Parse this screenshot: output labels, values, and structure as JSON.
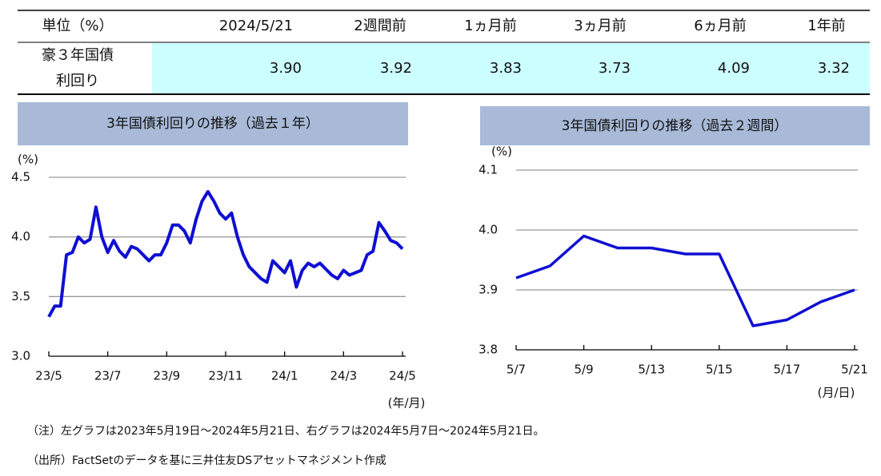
{
  "table": {
    "header": [
      "単位（%）",
      "2024/5/21",
      "2週間前",
      "1ヵ月前",
      "3ヵ月前",
      "6ヵ月前",
      "1年前"
    ],
    "rows": [
      [
        [
          "豪３年国債",
          "利回り"
        ],
        "3.90",
        "3.92",
        "3.83",
        "3.73",
        "4.09",
        "3.32"
      ]
    ]
  },
  "chart_data": [
    {
      "type": "line",
      "title": "3年国債利回りの推移（過去１年）",
      "y_label": "(%)",
      "x_label": "(年/月)",
      "color": "#0f0fd2",
      "grid": true,
      "categories": [
        "23/5",
        null,
        null,
        null,
        null,
        null,
        null,
        null,
        null,
        null,
        "23/7",
        null,
        null,
        null,
        null,
        null,
        null,
        null,
        null,
        null,
        "23/9",
        null,
        null,
        null,
        null,
        null,
        null,
        null,
        null,
        null,
        "23/11",
        null,
        null,
        null,
        null,
        null,
        null,
        null,
        null,
        null,
        "24/1",
        null,
        null,
        null,
        null,
        null,
        null,
        null,
        null,
        null,
        "24/3",
        null,
        null,
        null,
        null,
        null,
        null,
        null,
        null,
        null,
        "24/5"
      ],
      "values": [
        3.33,
        3.42,
        3.42,
        3.85,
        3.87,
        4.0,
        3.95,
        3.98,
        4.25,
        4.0,
        3.87,
        3.97,
        3.88,
        3.83,
        3.92,
        3.9,
        3.85,
        3.8,
        3.85,
        3.85,
        3.95,
        4.1,
        4.1,
        4.05,
        3.95,
        4.15,
        4.3,
        4.38,
        4.3,
        4.2,
        4.15,
        4.2,
        4.0,
        3.85,
        3.75,
        3.7,
        3.65,
        3.62,
        3.8,
        3.75,
        3.7,
        3.8,
        3.58,
        3.72,
        3.78,
        3.75,
        3.78,
        3.73,
        3.68,
        3.65,
        3.72,
        3.68,
        3.7,
        3.72,
        3.85,
        3.88,
        4.12,
        4.05,
        3.97,
        3.95,
        3.9
      ],
      "ylim": [
        3.0,
        4.5
      ],
      "yticks": [
        {
          "value": 3,
          "label": "3.0"
        },
        3.5,
        {
          "value": 4,
          "label": "4.0"
        },
        4.5
      ]
    },
    {
      "type": "line",
      "title": "3年国債利回りの推移（過去２週間）",
      "y_label": "(%)",
      "x_label": "(月/日)",
      "color": "#0f0fd2",
      "grid": true,
      "categories": [
        "5/7",
        null,
        "5/9",
        null,
        "5/13",
        null,
        "5/15",
        null,
        "5/17",
        null,
        "5/21"
      ],
      "values": [
        3.92,
        3.94,
        3.99,
        3.97,
        3.97,
        3.96,
        3.96,
        3.84,
        3.85,
        3.88,
        3.9
      ],
      "ylim": [
        3.8,
        4.1
      ],
      "yticks": [
        3.8,
        3.9,
        {
          "value": 4,
          "label": "4.0"
        },
        4.1
      ]
    }
  ],
  "notes": [
    "（注）左グラフは2023年5月19日～2024年5月21日、右グラフは2024年5月7日～2024年5月21日。",
    "（出所）FactSetのデータを基に三井住友DSアセットマネジメント作成"
  ]
}
